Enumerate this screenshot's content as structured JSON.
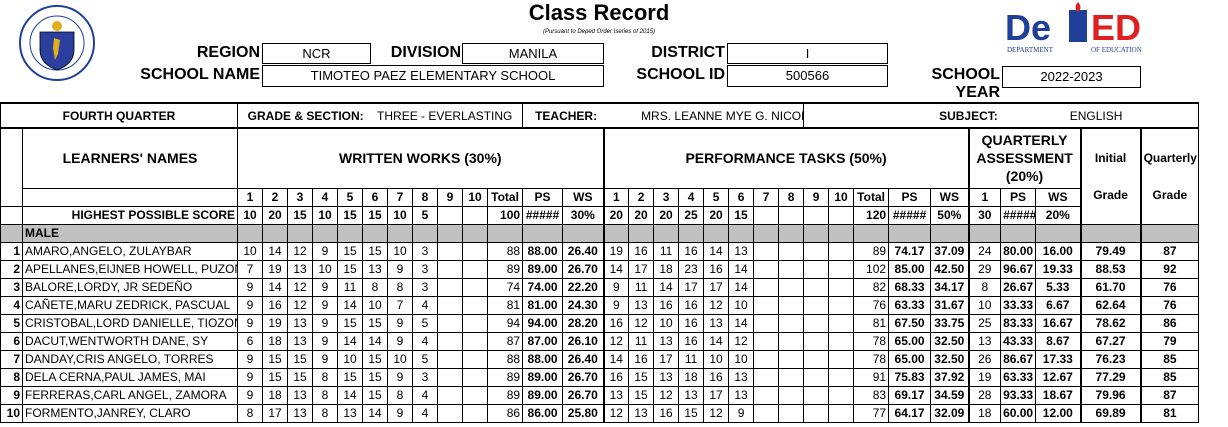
{
  "header": {
    "title": "Class Record",
    "subtitle": "(Pursuant to Deped Order Iseries of 2015)",
    "seal_text": "KAGAWARAN NG EDUKASYON · REPUBLIKA NG PILIPINAS",
    "deped_logo": "DepED",
    "deped_sub": "DEPARTMENT OF EDUCATION",
    "region_label": "REGION",
    "region": "NCR",
    "division_label": "DIVISION",
    "division": "MANILA",
    "district_label": "DISTRICT",
    "district": "I",
    "school_name_label": "SCHOOL NAME",
    "school_name": "TIMOTEO PAEZ ELEMENTARY SCHOOL",
    "school_id_label": "SCHOOL ID",
    "school_id": "500566",
    "school_year_label": "SCHOOL YEAR",
    "school_year": "2022-2023"
  },
  "info": {
    "quarter": "FOURTH QUARTER",
    "grade_section_label": "GRADE & SECTION:",
    "grade_section": "THREE - EVERLASTING",
    "teacher_label": "TEACHER:",
    "teacher": "MRS. LEANNE MYE G. NICOLAU",
    "subject_label": "SUBJECT:",
    "subject": "ENGLISH"
  },
  "columns": {
    "names": "LEARNERS' NAMES",
    "ww": "WRITTEN WORKS (30%)",
    "pt": "PERFORMANCE TASKS (50%)",
    "qa": "QUARTERLY ASSESSMENT (20%)",
    "initial_1": "Initial",
    "initial_2": "Grade",
    "quarterly_1": "Quarterly",
    "quarterly_2": "Grade",
    "nums": [
      "1",
      "2",
      "3",
      "4",
      "5",
      "6",
      "7",
      "8",
      "9",
      "10"
    ],
    "total": "Total",
    "ps": "PS",
    "ws": "WS",
    "qa_num": "1"
  },
  "hps": {
    "label": "HIGHEST POSSIBLE SCORE",
    "ww": [
      "10",
      "20",
      "15",
      "10",
      "15",
      "15",
      "10",
      "5",
      "",
      ""
    ],
    "ww_total": "100",
    "ww_ps": "#####",
    "ww_ws": "30%",
    "pt": [
      "20",
      "20",
      "20",
      "25",
      "20",
      "15",
      "",
      "",
      "",
      ""
    ],
    "pt_total": "120",
    "pt_ps": "#####",
    "pt_ws": "50%",
    "qa": "30",
    "qa_ps": "#####",
    "qa_ws": "20%"
  },
  "group_label": "MALE",
  "learners": [
    {
      "no": "1",
      "name": "AMARO,ANGELO, ZULAYBAR",
      "ww": [
        "10",
        "14",
        "12",
        "9",
        "15",
        "15",
        "10",
        "3",
        "",
        ""
      ],
      "ww_total": "88",
      "ww_ps": "88.00",
      "ww_ws": "26.40",
      "pt": [
        "19",
        "16",
        "11",
        "16",
        "14",
        "13",
        "",
        "",
        "",
        ""
      ],
      "pt_total": "89",
      "pt_ps": "74.17",
      "pt_ws": "37.09",
      "qa": "24",
      "qa_ps": "80.00",
      "qa_ws": "16.00",
      "initial": "79.49",
      "quarterly": "87"
    },
    {
      "no": "2",
      "name": "APELLANES,EIJNEB HOWELL, PUZON",
      "ww": [
        "7",
        "19",
        "13",
        "10",
        "15",
        "13",
        "9",
        "3",
        "",
        ""
      ],
      "ww_total": "89",
      "ww_ps": "89.00",
      "ww_ws": "26.70",
      "pt": [
        "14",
        "17",
        "18",
        "23",
        "16",
        "14",
        "",
        "",
        "",
        ""
      ],
      "pt_total": "102",
      "pt_ps": "85.00",
      "pt_ws": "42.50",
      "qa": "29",
      "qa_ps": "96.67",
      "qa_ws": "19.33",
      "initial": "88.53",
      "quarterly": "92"
    },
    {
      "no": "3",
      "name": "BALORE,LORDY, JR SEDEÑO",
      "ww": [
        "9",
        "14",
        "12",
        "9",
        "11",
        "8",
        "8",
        "3",
        "",
        ""
      ],
      "ww_total": "74",
      "ww_ps": "74.00",
      "ww_ws": "22.20",
      "pt": [
        "9",
        "11",
        "14",
        "17",
        "17",
        "14",
        "",
        "",
        "",
        ""
      ],
      "pt_total": "82",
      "pt_ps": "68.33",
      "pt_ws": "34.17",
      "qa": "8",
      "qa_ps": "26.67",
      "qa_ws": "5.33",
      "initial": "61.70",
      "quarterly": "76"
    },
    {
      "no": "4",
      "name": "CAÑETE,MARU  ZEDRICK, PASCUAL",
      "ww": [
        "9",
        "16",
        "12",
        "9",
        "14",
        "10",
        "7",
        "4",
        "",
        ""
      ],
      "ww_total": "81",
      "ww_ps": "81.00",
      "ww_ws": "24.30",
      "pt": [
        "9",
        "13",
        "16",
        "16",
        "12",
        "10",
        "",
        "",
        "",
        ""
      ],
      "pt_total": "76",
      "pt_ps": "63.33",
      "pt_ws": "31.67",
      "qa": "10",
      "qa_ps": "33.33",
      "qa_ws": "6.67",
      "initial": "62.64",
      "quarterly": "76"
    },
    {
      "no": "5",
      "name": "CRISTOBAL,LORD DANIELLE, TIOZON",
      "ww": [
        "9",
        "19",
        "13",
        "9",
        "15",
        "15",
        "9",
        "5",
        "",
        ""
      ],
      "ww_total": "94",
      "ww_ps": "94.00",
      "ww_ws": "28.20",
      "pt": [
        "16",
        "12",
        "10",
        "16",
        "13",
        "14",
        "",
        "",
        "",
        ""
      ],
      "pt_total": "81",
      "pt_ps": "67.50",
      "pt_ws": "33.75",
      "qa": "25",
      "qa_ps": "83.33",
      "qa_ws": "16.67",
      "initial": "78.62",
      "quarterly": "86"
    },
    {
      "no": "6",
      "name": "DACUT,WENTWORTH DANE, SY",
      "ww": [
        "6",
        "18",
        "13",
        "9",
        "14",
        "14",
        "9",
        "4",
        "",
        ""
      ],
      "ww_total": "87",
      "ww_ps": "87.00",
      "ww_ws": "26.10",
      "pt": [
        "12",
        "11",
        "13",
        "16",
        "14",
        "12",
        "",
        "",
        "",
        ""
      ],
      "pt_total": "78",
      "pt_ps": "65.00",
      "pt_ws": "32.50",
      "qa": "13",
      "qa_ps": "43.33",
      "qa_ws": "8.67",
      "initial": "67.27",
      "quarterly": "79"
    },
    {
      "no": "7",
      "name": "DANDAY,CRIS ANGELO, TORRES",
      "ww": [
        "9",
        "15",
        "15",
        "9",
        "10",
        "15",
        "10",
        "5",
        "",
        ""
      ],
      "ww_total": "88",
      "ww_ps": "88.00",
      "ww_ws": "26.40",
      "pt": [
        "14",
        "16",
        "17",
        "11",
        "10",
        "10",
        "",
        "",
        "",
        ""
      ],
      "pt_total": "78",
      "pt_ps": "65.00",
      "pt_ws": "32.50",
      "qa": "26",
      "qa_ps": "86.67",
      "qa_ws": "17.33",
      "initial": "76.23",
      "quarterly": "85"
    },
    {
      "no": "8",
      "name": "DELA CERNA,PAUL JAMES, MAI",
      "ww": [
        "9",
        "15",
        "15",
        "8",
        "15",
        "15",
        "9",
        "3",
        "",
        ""
      ],
      "ww_total": "89",
      "ww_ps": "89.00",
      "ww_ws": "26.70",
      "pt": [
        "16",
        "15",
        "13",
        "18",
        "16",
        "13",
        "",
        "",
        "",
        ""
      ],
      "pt_total": "91",
      "pt_ps": "75.83",
      "pt_ws": "37.92",
      "qa": "19",
      "qa_ps": "63.33",
      "qa_ws": "12.67",
      "initial": "77.29",
      "quarterly": "85"
    },
    {
      "no": "9",
      "name": "FERRERAS,CARL ANGEL, ZAMORA",
      "ww": [
        "9",
        "18",
        "13",
        "8",
        "14",
        "15",
        "8",
        "4",
        "",
        ""
      ],
      "ww_total": "89",
      "ww_ps": "89.00",
      "ww_ws": "26.70",
      "pt": [
        "13",
        "15",
        "12",
        "13",
        "17",
        "13",
        "",
        "",
        "",
        ""
      ],
      "pt_total": "83",
      "pt_ps": "69.17",
      "pt_ws": "34.59",
      "qa": "28",
      "qa_ps": "93.33",
      "qa_ws": "18.67",
      "initial": "79.96",
      "quarterly": "87"
    },
    {
      "no": "10",
      "name": "FORMENTO,JANREY, CLARO",
      "ww": [
        "8",
        "17",
        "13",
        "8",
        "13",
        "14",
        "9",
        "4",
        "",
        ""
      ],
      "ww_total": "86",
      "ww_ps": "86.00",
      "ww_ws": "25.80",
      "pt": [
        "12",
        "13",
        "16",
        "15",
        "12",
        "9",
        "",
        "",
        "",
        ""
      ],
      "pt_total": "77",
      "pt_ps": "64.17",
      "pt_ws": "32.09",
      "qa": "18",
      "qa_ps": "60.00",
      "qa_ws": "12.00",
      "initial": "69.89",
      "quarterly": "81"
    }
  ],
  "colors": {
    "group_row": "#c0c0c0",
    "deped_blue": "#1f3f99",
    "deped_red": "#e02020"
  }
}
